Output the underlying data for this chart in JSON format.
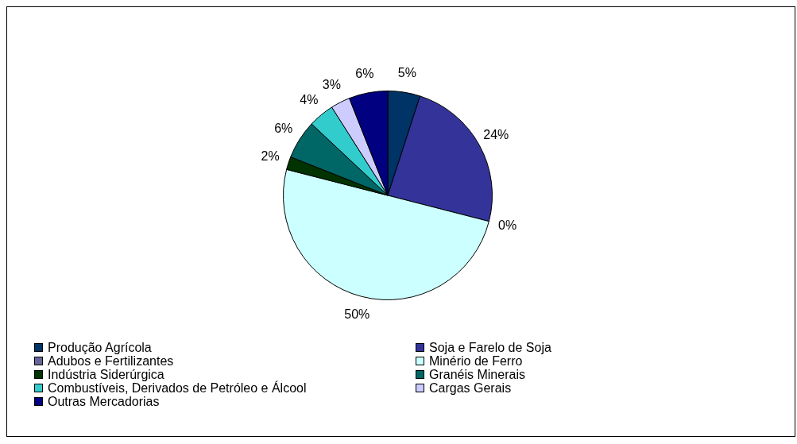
{
  "chart_data": {
    "type": "pie",
    "categories": [
      "Produção Agrícola",
      "Soja e Farelo de Soja",
      "Adubos e Fertilizantes",
      "Minério de Ferro",
      "Indústria Siderúrgica",
      "Granéis Minerais",
      "Combustíveis, Derivados de Petróleo e Álcool",
      "Cargas Gerais",
      "Outras Mercadorias"
    ],
    "values": [
      5,
      24,
      0,
      50,
      2,
      6,
      4,
      3,
      6
    ],
    "value_labels": [
      "5%",
      "24%",
      "0%",
      "50%",
      "2%",
      "6%",
      "4%",
      "3%",
      "6%"
    ],
    "colors": [
      "#003366",
      "#333399",
      "#666699",
      "#ccffff",
      "#003300",
      "#006666",
      "#33cccc",
      "#ccccff",
      "#000080"
    ],
    "legend": "bottom"
  }
}
